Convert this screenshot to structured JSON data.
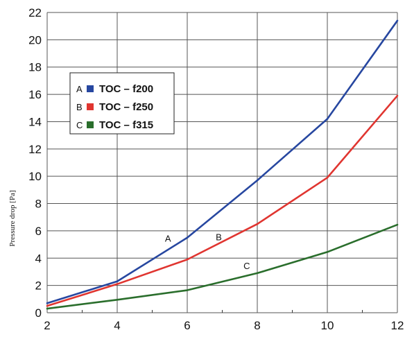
{
  "chart_data": {
    "type": "line",
    "title": "",
    "xlabel": "",
    "ylabel": "Pressure drop [Pa]",
    "xlim": [
      2,
      12
    ],
    "ylim": [
      0,
      22
    ],
    "x_ticks": [
      2,
      4,
      6,
      8,
      10,
      12
    ],
    "y_ticks": [
      0,
      2,
      4,
      6,
      8,
      10,
      12,
      14,
      16,
      18,
      20,
      22
    ],
    "grid": true,
    "legend_position": "upper-left",
    "x": [
      2,
      4,
      6,
      8,
      10,
      12
    ],
    "series": [
      {
        "letter": "A",
        "name": "TOC – f200",
        "color": "#2747a0",
        "values": [
          0.7,
          2.3,
          5.5,
          9.7,
          14.2,
          21.4
        ]
      },
      {
        "letter": "B",
        "name": "TOC – f250",
        "color": "#e03530",
        "values": [
          0.5,
          2.1,
          3.9,
          6.5,
          9.9,
          15.9
        ]
      },
      {
        "letter": "C",
        "name": "TOC – f315",
        "color": "#2a6e2c",
        "values": [
          0.3,
          0.95,
          1.65,
          2.9,
          4.45,
          6.45
        ]
      }
    ],
    "annotations": [
      {
        "text": "A",
        "x": 5.45,
        "y": 5.2
      },
      {
        "text": "B",
        "x": 6.9,
        "y": 5.3
      },
      {
        "text": "C",
        "x": 7.7,
        "y": 3.2
      }
    ]
  }
}
